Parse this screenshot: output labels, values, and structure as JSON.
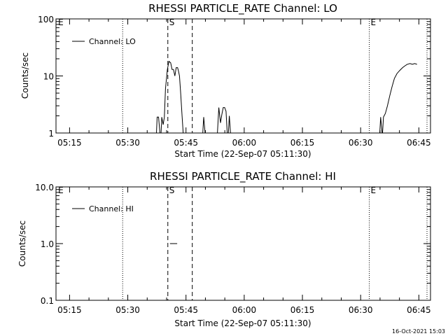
{
  "footer": {
    "timestamp": "16-Oct-2021 15:03"
  },
  "chart_data": [
    {
      "type": "line",
      "title": "RHESSI PARTICLE_RATE Channel: LO",
      "xlabel": "Start Time (22-Sep-07 05:11:30)",
      "ylabel": "Counts/sec",
      "xscale": "time-minutes",
      "xlim": [
        5.1917,
        6.8
      ],
      "yscale": "log",
      "ylim": [
        1,
        100
      ],
      "x_ticks": [
        5.25,
        5.5,
        5.75,
        6.0,
        6.25,
        6.5,
        6.75
      ],
      "x_tick_labels": [
        "05:15",
        "05:30",
        "05:45",
        "06:00",
        "06:15",
        "06:30",
        "06:45"
      ],
      "y_ticks": [
        1,
        10,
        100
      ],
      "y_tick_labels": [
        "1",
        "10",
        "100"
      ],
      "legend": {
        "label": "Channel: LO",
        "placement": "top-left"
      },
      "markers": [
        {
          "x": 5.195,
          "style": "label-only",
          "label": "E"
        },
        {
          "x": 5.478,
          "style": "dotted",
          "label": ""
        },
        {
          "x": 5.672,
          "style": "dashed",
          "label": "S"
        },
        {
          "x": 5.777,
          "style": "dashed",
          "label": ""
        },
        {
          "x": 6.537,
          "style": "dotted",
          "label": "E"
        },
        {
          "x": 6.785,
          "style": "dotted",
          "label": ""
        }
      ],
      "series": [
        {
          "name": "Channel: LO",
          "segments": [
            [
              [
                5.623,
                1
              ],
              [
                5.626,
                1.9
              ],
              [
                5.632,
                1.9
              ],
              [
                5.638,
                1
              ],
              [
                5.643,
                1
              ],
              [
                5.646,
                1.9
              ],
              [
                5.652,
                1.4
              ],
              [
                5.657,
                1.9
              ],
              [
                5.662,
                6
              ],
              [
                5.67,
                13
              ],
              [
                5.677,
                18
              ],
              [
                5.684,
                17
              ],
              [
                5.69,
                13
              ],
              [
                5.696,
                13
              ],
              [
                5.702,
                10
              ],
              [
                5.708,
                14
              ],
              [
                5.714,
                14
              ],
              [
                5.718,
                12
              ],
              [
                5.722,
                10
              ],
              [
                5.727,
                5
              ],
              [
                5.733,
                2
              ],
              [
                5.738,
                1
              ]
            ],
            [
              [
                5.822,
                1
              ],
              [
                5.826,
                1.9
              ],
              [
                5.832,
                1
              ],
              [
                5.838,
                1
              ]
            ],
            [
              [
                5.885,
                1
              ],
              [
                5.891,
                2.8
              ],
              [
                5.898,
                1.5
              ],
              [
                5.904,
                2.1
              ],
              [
                5.91,
                2.8
              ],
              [
                5.916,
                2.8
              ],
              [
                5.922,
                2.4
              ],
              [
                5.927,
                1
              ],
              [
                5.932,
                1
              ],
              [
                5.936,
                2
              ],
              [
                5.941,
                1
              ]
            ],
            [
              [
                6.582,
                1
              ],
              [
                6.586,
                1.9
              ],
              [
                6.592,
                1
              ],
              [
                6.594,
                1
              ],
              [
                6.598,
                1.9
              ],
              [
                6.606,
                2.2
              ],
              [
                6.615,
                3
              ],
              [
                6.625,
                4.5
              ],
              [
                6.635,
                6.5
              ],
              [
                6.645,
                9
              ],
              [
                6.656,
                11
              ],
              [
                6.668,
                12.5
              ],
              [
                6.68,
                14
              ],
              [
                6.69,
                15
              ],
              [
                6.7,
                16
              ],
              [
                6.712,
                16.5
              ],
              [
                6.722,
                16
              ],
              [
                6.732,
                16.5
              ],
              [
                6.742,
                16
              ]
            ]
          ]
        }
      ]
    },
    {
      "type": "line",
      "title": "RHESSI PARTICLE_RATE Channel: HI",
      "xlabel": "Start Time (22-Sep-07 05:11:30)",
      "ylabel": "Counts/sec",
      "xscale": "time-minutes",
      "xlim": [
        5.1917,
        6.8
      ],
      "yscale": "log",
      "ylim": [
        0.1,
        10
      ],
      "x_ticks": [
        5.25,
        5.5,
        5.75,
        6.0,
        6.25,
        6.5,
        6.75
      ],
      "x_tick_labels": [
        "05:15",
        "05:30",
        "05:45",
        "06:00",
        "06:15",
        "06:30",
        "06:45"
      ],
      "y_ticks": [
        0.1,
        1,
        10
      ],
      "y_tick_labels": [
        "0.1",
        "1.0",
        "10.0"
      ],
      "legend": {
        "label": "Channel: HI",
        "placement": "top-left"
      },
      "markers": [
        {
          "x": 5.195,
          "style": "label-only",
          "label": "E"
        },
        {
          "x": 5.478,
          "style": "dotted",
          "label": ""
        },
        {
          "x": 5.672,
          "style": "dashed",
          "label": "S"
        },
        {
          "x": 5.777,
          "style": "dashed",
          "label": ""
        },
        {
          "x": 6.537,
          "style": "dotted",
          "label": "E"
        },
        {
          "x": 6.785,
          "style": "dotted",
          "label": ""
        }
      ],
      "series": [
        {
          "name": "Channel: HI",
          "segments": [
            [
              [
                5.681,
                1
              ],
              [
                5.712,
                1
              ]
            ]
          ]
        }
      ]
    }
  ]
}
